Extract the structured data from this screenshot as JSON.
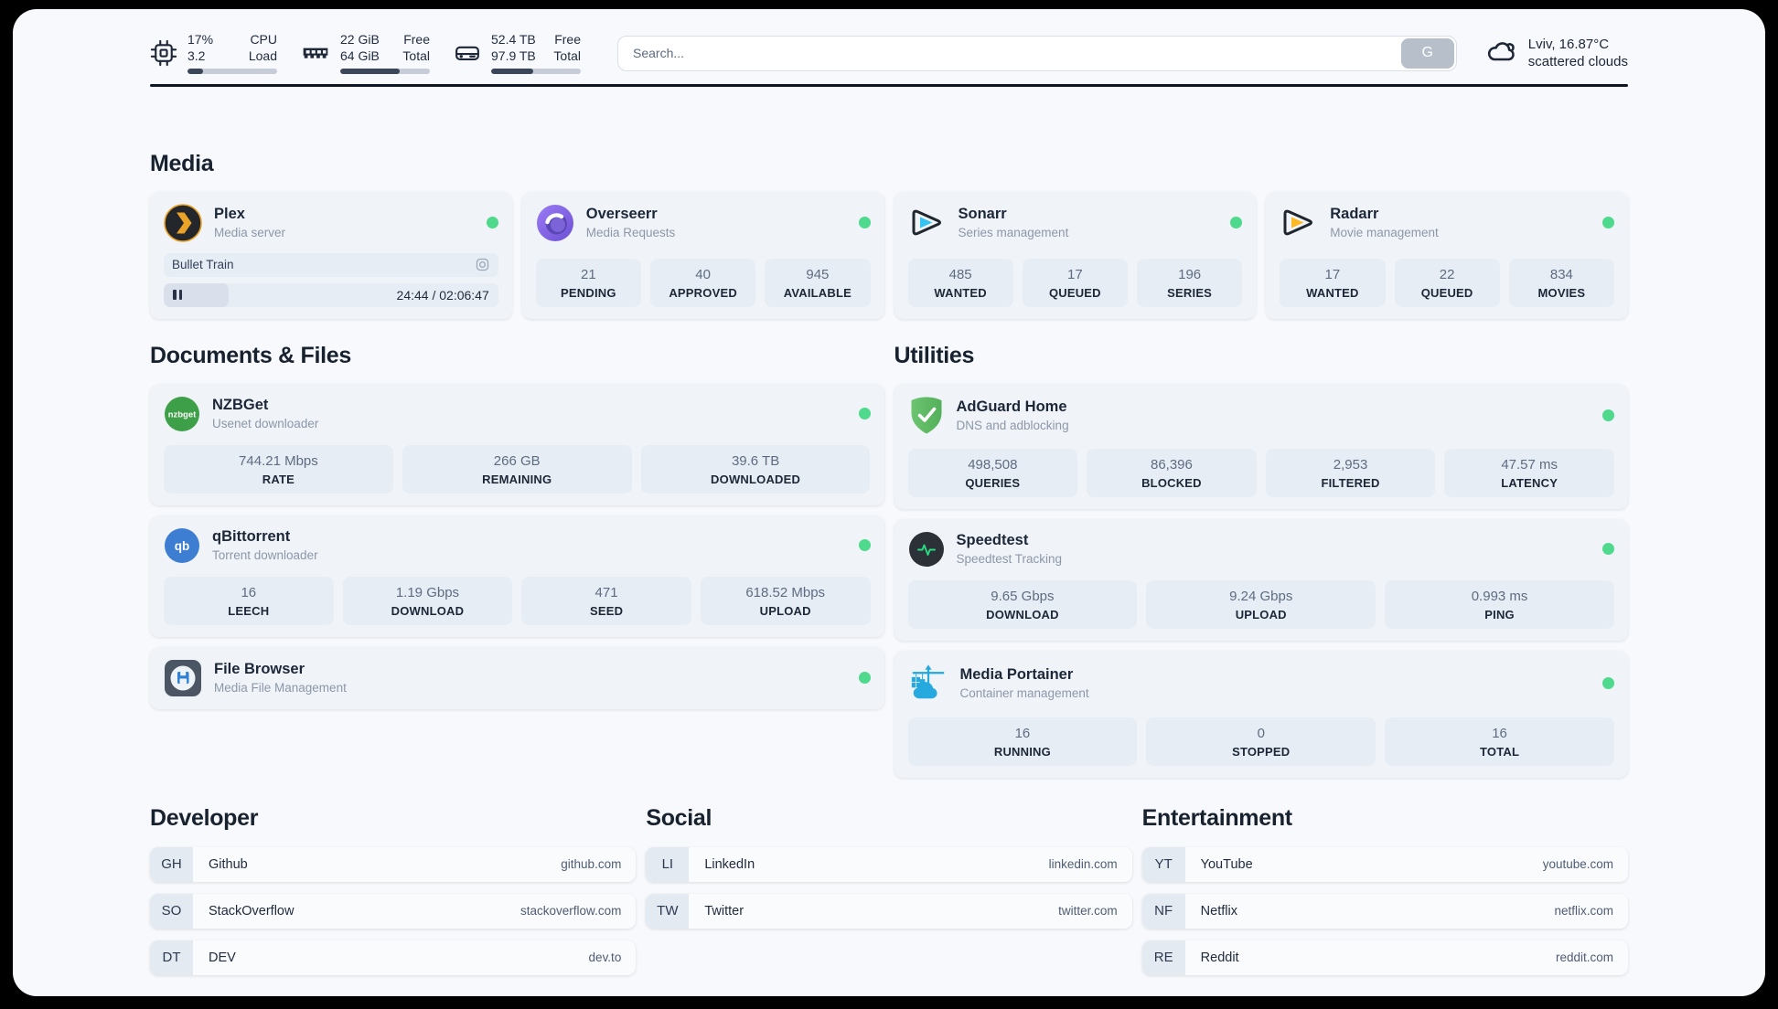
{
  "topbar": {
    "cpu": {
      "values": [
        "17%",
        "3.2"
      ],
      "labels": [
        "CPU",
        "Load"
      ],
      "progress_pct": 17
    },
    "memory": {
      "values": [
        "22 GiB",
        "64 GiB"
      ],
      "labels": [
        "Free",
        "Total"
      ],
      "progress_pct": 66
    },
    "disk": {
      "values": [
        "52.4 TB",
        "97.9 TB"
      ],
      "labels": [
        "Free",
        "Total"
      ],
      "progress_pct": 46.5
    },
    "search": {
      "placeholder": "Search...",
      "button_label": "G"
    },
    "weather": {
      "location_temp": "Lviv, 16.87°C",
      "condition": "scattered clouds"
    }
  },
  "sections": {
    "media": "Media",
    "documents": "Documents & Files",
    "utilities": "Utilities",
    "developer": "Developer",
    "social": "Social",
    "entertainment": "Entertainment"
  },
  "apps": {
    "plex": {
      "name": "Plex",
      "subtitle": "Media server",
      "status": "online",
      "now_playing": "Bullet Train",
      "elapsed_total": "24:44 / 02:06:47",
      "progress_pct": 19.5
    },
    "overseerr": {
      "name": "Overseerr",
      "subtitle": "Media Requests",
      "status": "online",
      "stats": [
        {
          "value": "21",
          "label": "PENDING"
        },
        {
          "value": "40",
          "label": "APPROVED"
        },
        {
          "value": "945",
          "label": "AVAILABLE"
        }
      ]
    },
    "sonarr": {
      "name": "Sonarr",
      "subtitle": "Series management",
      "status": "online",
      "stats": [
        {
          "value": "485",
          "label": "WANTED"
        },
        {
          "value": "17",
          "label": "QUEUED"
        },
        {
          "value": "196",
          "label": "SERIES"
        }
      ]
    },
    "radarr": {
      "name": "Radarr",
      "subtitle": "Movie management",
      "status": "online",
      "stats": [
        {
          "value": "17",
          "label": "WANTED"
        },
        {
          "value": "22",
          "label": "QUEUED"
        },
        {
          "value": "834",
          "label": "MOVIES"
        }
      ]
    },
    "nzbget": {
      "name": "NZBGet",
      "subtitle": "Usenet downloader",
      "status": "online",
      "stats": [
        {
          "value": "744.21 Mbps",
          "label": "RATE"
        },
        {
          "value": "266 GB",
          "label": "REMAINING"
        },
        {
          "value": "39.6 TB",
          "label": "DOWNLOADED"
        }
      ]
    },
    "qbittorrent": {
      "name": "qBittorrent",
      "subtitle": "Torrent downloader",
      "status": "online",
      "stats": [
        {
          "value": "16",
          "label": "LEECH"
        },
        {
          "value": "1.19 Gbps",
          "label": "DOWNLOAD"
        },
        {
          "value": "471",
          "label": "SEED"
        },
        {
          "value": "618.52 Mbps",
          "label": "UPLOAD"
        }
      ]
    },
    "filebrowser": {
      "name": "File Browser",
      "subtitle": "Media File Management",
      "status": "online"
    },
    "adguard": {
      "name": "AdGuard Home",
      "subtitle": "DNS and adblocking",
      "status": "online",
      "stats": [
        {
          "value": "498,508",
          "label": "QUERIES"
        },
        {
          "value": "86,396",
          "label": "BLOCKED"
        },
        {
          "value": "2,953",
          "label": "FILTERED"
        },
        {
          "value": "47.57 ms",
          "label": "LATENCY"
        }
      ]
    },
    "speedtest": {
      "name": "Speedtest",
      "subtitle": "Speedtest Tracking",
      "status": "online",
      "stats": [
        {
          "value": "9.65 Gbps",
          "label": "DOWNLOAD"
        },
        {
          "value": "9.24 Gbps",
          "label": "UPLOAD"
        },
        {
          "value": "0.993 ms",
          "label": "PING"
        }
      ]
    },
    "portainer": {
      "name": "Media Portainer",
      "subtitle": "Container management",
      "status": "online",
      "stats": [
        {
          "value": "16",
          "label": "RUNNING"
        },
        {
          "value": "0",
          "label": "STOPPED"
        },
        {
          "value": "16",
          "label": "TOTAL"
        }
      ]
    }
  },
  "links": {
    "developer": [
      {
        "abbrev": "GH",
        "name": "Github",
        "url": "github.com"
      },
      {
        "abbrev": "SO",
        "name": "StackOverflow",
        "url": "stackoverflow.com"
      },
      {
        "abbrev": "DT",
        "name": "DEV",
        "url": "dev.to"
      }
    ],
    "social": [
      {
        "abbrev": "LI",
        "name": "LinkedIn",
        "url": "linkedin.com"
      },
      {
        "abbrev": "TW",
        "name": "Twitter",
        "url": "twitter.com"
      }
    ],
    "entertainment": [
      {
        "abbrev": "YT",
        "name": "YouTube",
        "url": "youtube.com"
      },
      {
        "abbrev": "NF",
        "name": "Netflix",
        "url": "netflix.com"
      },
      {
        "abbrev": "RE",
        "name": "Reddit",
        "url": "reddit.com"
      }
    ]
  },
  "colors": {
    "status_online": "#4ed98c",
    "progress_fill": "#3a4659",
    "plex_gold": "#e8a124",
    "sonarr_cyan": "#36c3f1",
    "radarr_amber": "#fdb924",
    "adguard_green": "#5cb661",
    "speedtest_pulse": "#27da81",
    "portainer_blue": "#25a9de"
  }
}
